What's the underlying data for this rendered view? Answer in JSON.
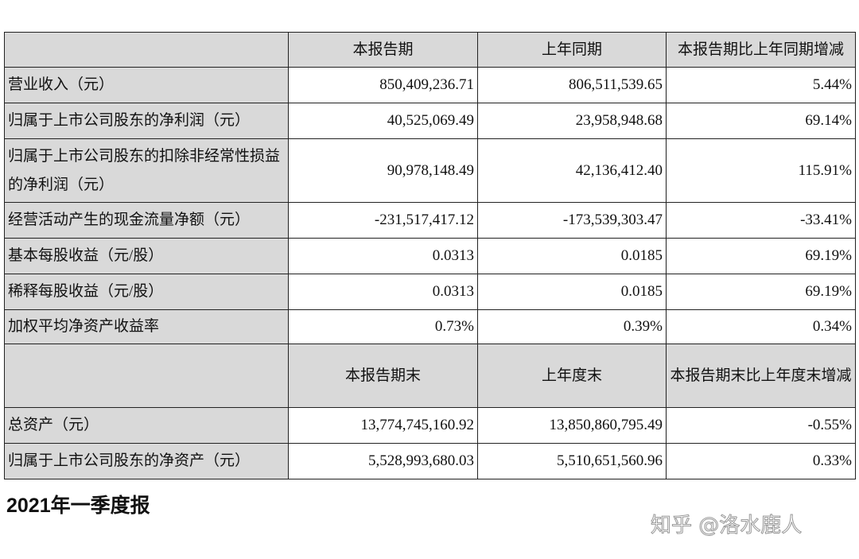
{
  "table": {
    "sections": [
      {
        "header": [
          null,
          "本报告期",
          "上年同期",
          "本报告期比上年同期增减"
        ],
        "rows": [
          [
            "营业收入（元）",
            "850,409,236.71",
            "806,511,539.65",
            "5.44%"
          ],
          [
            "归属于上市公司股东的净利润（元）",
            "40,525,069.49",
            "23,958,948.68",
            "69.14%"
          ],
          [
            "归属于上市公司股东的扣除非经常性损益的净利润（元）",
            "90,978,148.49",
            "42,136,412.40",
            "115.91%"
          ],
          [
            "经营活动产生的现金流量净额（元）",
            "-231,517,417.12",
            "-173,539,303.47",
            "-33.41%"
          ],
          [
            "基本每股收益（元/股）",
            "0.0313",
            "0.0185",
            "69.19%"
          ],
          [
            "稀释每股收益（元/股）",
            "0.0313",
            "0.0185",
            "69.19%"
          ],
          [
            "加权平均净资产收益率",
            "0.73%",
            "0.39%",
            "0.34%"
          ]
        ]
      },
      {
        "header": [
          null,
          "本报告期末",
          "上年度末",
          "本报告期末比上年度末增减"
        ],
        "rows": [
          [
            "总资产（元）",
            "13,774,745,160.92",
            "13,850,860,795.49",
            "-0.55%"
          ],
          [
            "归属于上市公司股东的净资产（元）",
            "5,528,993,680.03",
            "5,510,651,560.96",
            "0.33%"
          ]
        ]
      }
    ]
  },
  "heading": "2021年一季度报",
  "watermark": "知乎 @洛水鹿人"
}
